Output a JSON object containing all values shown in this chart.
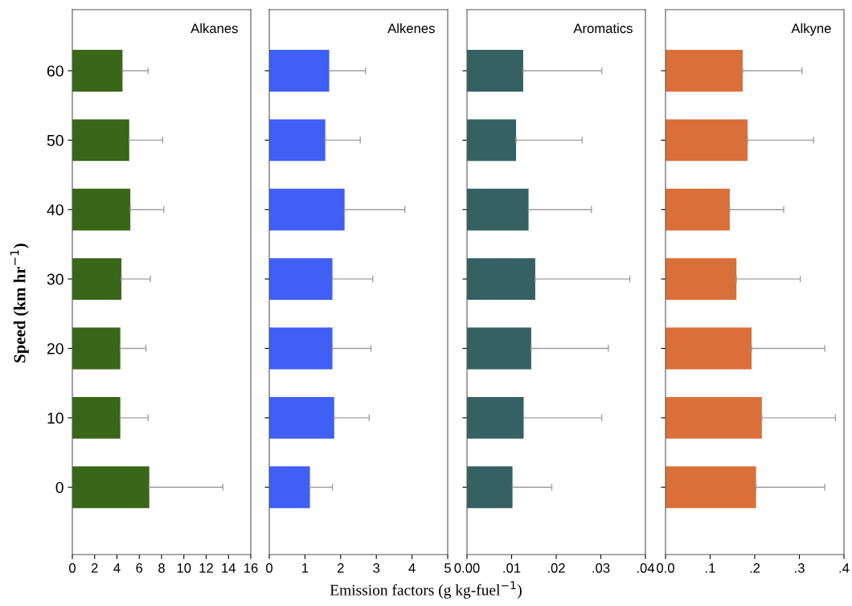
{
  "chart_data": [
    {
      "type": "bar",
      "orientation": "horizontal",
      "title": "Alkanes",
      "xlabel": "Emission factors (g kg-fuel$^{−1}$)",
      "ylabel": "Speed (km hr$^{−1}$)",
      "categories": [
        "60",
        "50",
        "40",
        "30",
        "20",
        "10",
        "0"
      ],
      "series": [
        {
          "color": "#3a6618",
          "values": [
            4.5,
            5.1,
            5.2,
            4.4,
            4.3,
            4.3,
            6.9
          ],
          "errors": [
            [
              4.5,
              6.8
            ],
            [
              5.1,
              8.1
            ],
            [
              5.2,
              8.2
            ],
            [
              4.4,
              7.0
            ],
            [
              4.3,
              6.6
            ],
            [
              4.3,
              6.8
            ],
            [
              6.9,
              13.5
            ]
          ]
        }
      ],
      "xlim": [
        0,
        16
      ],
      "xticks": [
        0,
        2,
        4,
        6,
        8,
        10,
        12,
        14,
        16
      ]
    },
    {
      "type": "bar",
      "orientation": "horizontal",
      "title": "Alkenes",
      "categories": [
        "60",
        "50",
        "40",
        "30",
        "20",
        "10",
        "0"
      ],
      "series": [
        {
          "color": "#3f5ff5",
          "values": [
            1.68,
            1.57,
            2.11,
            1.77,
            1.77,
            1.82,
            1.14
          ],
          "errors": [
            [
              1.68,
              2.7
            ],
            [
              1.57,
              2.55
            ],
            [
              2.11,
              3.8
            ],
            [
              1.77,
              2.9
            ],
            [
              1.77,
              2.85
            ],
            [
              1.82,
              2.8
            ],
            [
              1.14,
              1.77
            ]
          ]
        }
      ],
      "xlim": [
        0,
        5
      ],
      "xticks": [
        0,
        1,
        2,
        3,
        4,
        5
      ],
      "tick_labels": "x"
    },
    {
      "type": "bar",
      "orientation": "horizontal",
      "title": "Aromatics",
      "categories": [
        "60",
        "50",
        "40",
        "30",
        "20",
        "10",
        "0"
      ],
      "series": [
        {
          "color": "#356163",
          "values": [
            0.0126,
            0.011,
            0.0138,
            0.0153,
            0.0144,
            0.0127,
            0.0102
          ],
          "errors": [
            [
              0.0126,
              0.0302
            ],
            [
              0.011,
              0.0258
            ],
            [
              0.0138,
              0.0279
            ],
            [
              0.0153,
              0.0365
            ],
            [
              0.0144,
              0.0317
            ],
            [
              0.0127,
              0.0302
            ],
            [
              0.0102,
              0.019
            ]
          ]
        }
      ],
      "xlim": [
        0,
        0.04
      ],
      "xticks": [
        {
          "value": 0,
          "label": "0.00"
        },
        {
          "value": 0.01,
          "label": ".01"
        },
        {
          "value": 0.02,
          "label": ".02"
        },
        {
          "value": 0.03,
          "label": ".03"
        },
        {
          "value": 0.04,
          "label": ".04"
        }
      ],
      "tick_labels": "x"
    },
    {
      "type": "bar",
      "orientation": "horizontal",
      "title": "Alkyne",
      "categories": [
        "60",
        "50",
        "40",
        "30",
        "20",
        "10",
        "0"
      ],
      "series": [
        {
          "color": "#d9703a",
          "values": [
            0.173,
            0.184,
            0.144,
            0.159,
            0.193,
            0.216,
            0.203
          ],
          "errors": [
            [
              0.173,
              0.306
            ],
            [
              0.184,
              0.332
            ],
            [
              0.144,
              0.265
            ],
            [
              0.159,
              0.302
            ],
            [
              0.193,
              0.357
            ],
            [
              0.216,
              0.381
            ],
            [
              0.203,
              0.357
            ]
          ]
        }
      ],
      "xlim": [
        0,
        0.4
      ],
      "xticks": [
        {
          "value": 0,
          "label": "0.0"
        },
        {
          "value": 0.1,
          "label": ".1"
        },
        {
          "value": 0.2,
          "label": ".2"
        },
        {
          "value": 0.3,
          "label": ".3"
        },
        {
          "value": 0.4,
          "label": ".4"
        }
      ],
      "tick_labels": "x"
    }
  ]
}
